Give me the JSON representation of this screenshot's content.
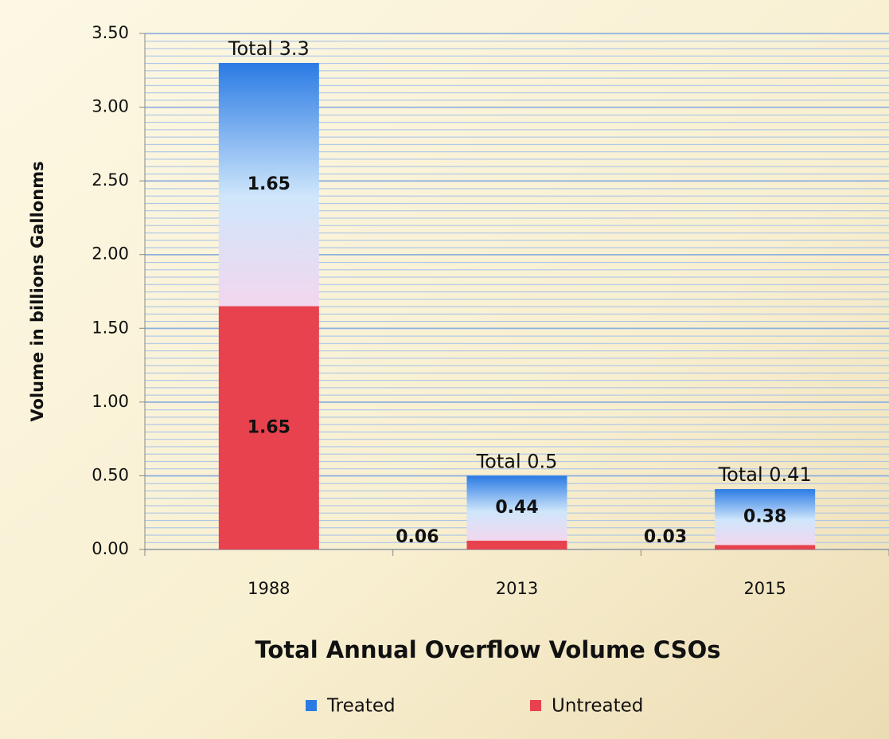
{
  "chart_data": {
    "type": "stacked_bar",
    "title": "Total Annual Overflow Volume CSOs",
    "y_label": "Volume in billions Gallonms",
    "categories": [
      "1988",
      "2013",
      "2015"
    ],
    "series": [
      {
        "name": "Treated",
        "color": "#2a7be4",
        "values": [
          1.65,
          0.44,
          0.38
        ]
      },
      {
        "name": "Untreated",
        "color": "#e8424e",
        "values": [
          1.65,
          0.06,
          0.03
        ]
      }
    ],
    "total_labels": [
      "Total 3.3",
      "Total 0.5",
      "Total 0.41"
    ],
    "ylim": [
      0,
      3.5
    ],
    "yticks": [
      {
        "value": 0,
        "label": "0.00"
      },
      {
        "value": 0.5,
        "label": "0.50"
      },
      {
        "value": 1,
        "label": "1.00"
      },
      {
        "value": 1.5,
        "label": "1.50"
      },
      {
        "value": 2,
        "label": "2.00"
      },
      {
        "value": 2.5,
        "label": "2.50"
      },
      {
        "value": 3,
        "label": "3.00"
      },
      {
        "value": 3.5,
        "label": "3.50"
      }
    ],
    "grid": true
  }
}
